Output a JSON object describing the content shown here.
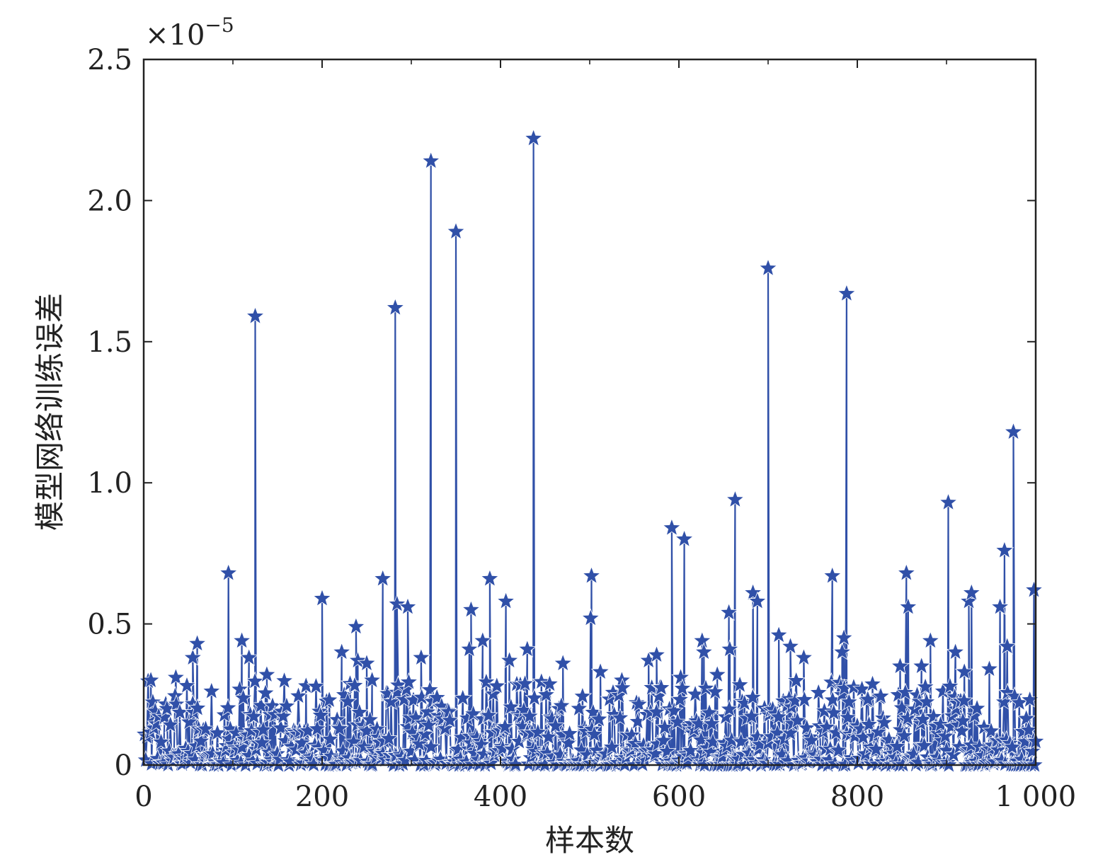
{
  "chart_data": {
    "type": "scatter",
    "title": "",
    "xlabel": "样本数",
    "ylabel": "模型网络训练误差",
    "scale_note_base": "×10",
    "scale_note_exp": "−5",
    "xlim": [
      0,
      1000
    ],
    "ylim": [
      0,
      2.5
    ],
    "xticks": [
      0,
      200,
      400,
      600,
      800,
      1000
    ],
    "xtick_labels": [
      "0",
      "200",
      "400",
      "600",
      "800",
      "1 000"
    ],
    "yticks": [
      0,
      0.5,
      1.0,
      1.5,
      2.0,
      2.5
    ],
    "ytick_labels": [
      "0",
      "0.5",
      "1.0",
      "1.5",
      "2.0",
      "2.5"
    ],
    "grid": false,
    "marker": "star",
    "color": "#3050a8",
    "series": [
      {
        "values_unit": "×10^-5",
        "peaks": [
          {
            "x": 95,
            "y": 0.68
          },
          {
            "x": 125,
            "y": 1.59
          },
          {
            "x": 200,
            "y": 0.59
          },
          {
            "x": 268,
            "y": 0.66
          },
          {
            "x": 282,
            "y": 1.62
          },
          {
            "x": 322,
            "y": 2.14
          },
          {
            "x": 350,
            "y": 1.89
          },
          {
            "x": 388,
            "y": 0.66
          },
          {
            "x": 406,
            "y": 0.58
          },
          {
            "x": 437,
            "y": 2.22
          },
          {
            "x": 502,
            "y": 0.67
          },
          {
            "x": 592,
            "y": 0.84
          },
          {
            "x": 606,
            "y": 0.8
          },
          {
            "x": 663,
            "y": 0.94
          },
          {
            "x": 700,
            "y": 1.76
          },
          {
            "x": 772,
            "y": 0.67
          },
          {
            "x": 788,
            "y": 1.67
          },
          {
            "x": 855,
            "y": 0.68
          },
          {
            "x": 902,
            "y": 0.93
          },
          {
            "x": 965,
            "y": 0.76
          },
          {
            "x": 975,
            "y": 1.18
          },
          {
            "x": 998,
            "y": 0.62
          }
        ],
        "mid_points": [
          {
            "x": 8,
            "y": 0.3
          },
          {
            "x": 36,
            "y": 0.31
          },
          {
            "x": 55,
            "y": 0.38
          },
          {
            "x": 60,
            "y": 0.43
          },
          {
            "x": 110,
            "y": 0.44
          },
          {
            "x": 118,
            "y": 0.38
          },
          {
            "x": 138,
            "y": 0.32
          },
          {
            "x": 182,
            "y": 0.28
          },
          {
            "x": 208,
            "y": 0.23
          },
          {
            "x": 222,
            "y": 0.4
          },
          {
            "x": 238,
            "y": 0.49
          },
          {
            "x": 240,
            "y": 0.37
          },
          {
            "x": 250,
            "y": 0.36
          },
          {
            "x": 256,
            "y": 0.3
          },
          {
            "x": 284,
            "y": 0.57
          },
          {
            "x": 296,
            "y": 0.56
          },
          {
            "x": 311,
            "y": 0.38
          },
          {
            "x": 365,
            "y": 0.41
          },
          {
            "x": 367,
            "y": 0.55
          },
          {
            "x": 380,
            "y": 0.44
          },
          {
            "x": 410,
            "y": 0.37
          },
          {
            "x": 430,
            "y": 0.41
          },
          {
            "x": 470,
            "y": 0.36
          },
          {
            "x": 501,
            "y": 0.52
          },
          {
            "x": 512,
            "y": 0.33
          },
          {
            "x": 536,
            "y": 0.3
          },
          {
            "x": 566,
            "y": 0.37
          },
          {
            "x": 575,
            "y": 0.39
          },
          {
            "x": 602,
            "y": 0.31
          },
          {
            "x": 626,
            "y": 0.44
          },
          {
            "x": 628,
            "y": 0.4
          },
          {
            "x": 643,
            "y": 0.32
          },
          {
            "x": 656,
            "y": 0.54
          },
          {
            "x": 657,
            "y": 0.41
          },
          {
            "x": 683,
            "y": 0.61
          },
          {
            "x": 688,
            "y": 0.58
          },
          {
            "x": 712,
            "y": 0.46
          },
          {
            "x": 725,
            "y": 0.42
          },
          {
            "x": 740,
            "y": 0.38
          },
          {
            "x": 783,
            "y": 0.4
          },
          {
            "x": 785,
            "y": 0.45
          },
          {
            "x": 848,
            "y": 0.35
          },
          {
            "x": 857,
            "y": 0.56
          },
          {
            "x": 872,
            "y": 0.35
          },
          {
            "x": 882,
            "y": 0.44
          },
          {
            "x": 910,
            "y": 0.4
          },
          {
            "x": 920,
            "y": 0.33
          },
          {
            "x": 925,
            "y": 0.58
          },
          {
            "x": 928,
            "y": 0.61
          },
          {
            "x": 948,
            "y": 0.34
          },
          {
            "x": 960,
            "y": 0.56
          },
          {
            "x": 968,
            "y": 0.42
          }
        ],
        "background_points": 760,
        "background_range": [
          0.0,
          0.3
        ]
      }
    ]
  }
}
